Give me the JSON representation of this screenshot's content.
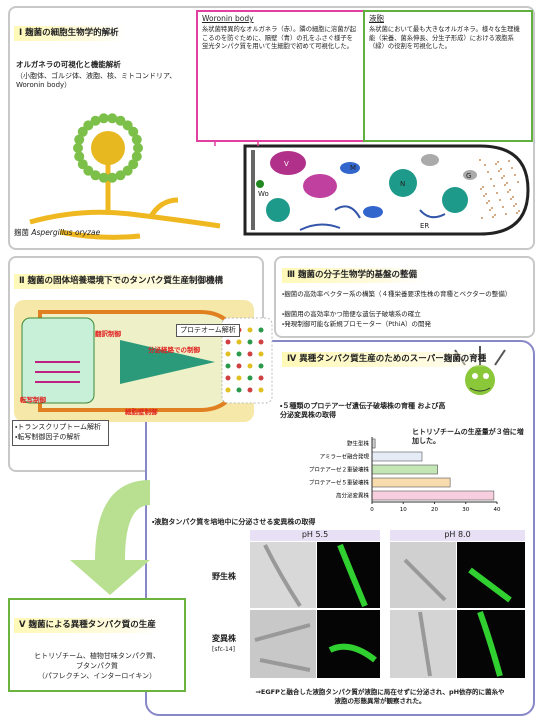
{
  "section1": {
    "title": "Ⅰ 麹菌の細胞生物学的解析",
    "subtitle": "オルガネラの可視化と機能解析",
    "organelles": "（小胞体、ゴルジ体、液胞、核、ミトコンドリア、Woronin body）",
    "species_label": "麹菌",
    "species_name": "Aspergillus oryzae",
    "woronin": {
      "title": "Woronin body",
      "text": "糸状菌特異的なオルガネラ（赤）。隣の細胞に溶菌が起こるのを防ぐために、隔壁（青）の孔をふさぐ様子を蛍光タンパク質を用いて生細胞で初めて可視化した。"
    },
    "vacuole": {
      "title": "液胞",
      "text": "糸状菌において最も大きなオルガネラ。様々な生理機能（栄養、菌糸伸長、分生子形成）における液胞系（緑）の役割を可視化した。"
    },
    "cell_labels": [
      "V",
      "Wo",
      "N",
      "M",
      "G",
      "ER"
    ]
  },
  "section2": {
    "title": "Ⅱ 麹菌の固体培養環境下でのタンパク質生産制御機構",
    "proteome": "プロテオーム解析",
    "transcriptome": "・トランスクリプトーム解析",
    "tf": "・転写制御因子の解析",
    "controls": [
      "翻訳制御",
      "分泌経路での制御",
      "転写制御",
      "細胞壁制御"
    ]
  },
  "section3": {
    "title": "Ⅲ 麹菌の分子生物学的基盤の整備",
    "items": [
      "・麹菌の高効率ベクター系の構築（４種栄養要求性株の育種とベクターの整備）",
      "・麹菌用の高効率かつ簡便な遺伝子破壊系の確立",
      "・発現制御可能な新規プロモーター（PthiA）の開発"
    ]
  },
  "section4": {
    "title": "Ⅳ 異種タンパク質生産のためのスーパー麹菌の育種",
    "item1": "・５種類のプロテアーゼ遺伝子破壊株の育種 および高分泌変異株の取得",
    "note": "ヒトリゾチームの生産量が３倍に増加した。",
    "item2": "・液胞タンパク質を培地中に分泌させる変異株の取得",
    "ph": [
      "pH 5.5",
      "pH 8.0"
    ],
    "wild": "野生株",
    "mutant": "変異株",
    "mutant_id": "[sfc-14]",
    "conclusion": "⇒EGFPと融合した液胞タンパク質が液胞に局在せずに分泌され、pH依存的に菌糸や液胞の形態異常が観察された。"
  },
  "section5": {
    "title": "Ⅴ 麹菌による異種タンパク質の生産",
    "text": [
      "ヒトリゾチーム、植物甘味タンパク質、",
      "ブタンパク質",
      "（パフレクチン、インターロイキン）"
    ]
  },
  "chart_data": {
    "type": "bar",
    "orientation": "horizontal",
    "categories": [
      "野生型株",
      "アミラーゼ融合発現",
      "プロテアーゼ２重破壊株",
      "プロテアーゼ５重破壊株",
      "高分泌変異株"
    ],
    "values": [
      1,
      16,
      21,
      25,
      39
    ],
    "colors": [
      "#cfcfcf",
      "#e6ecf6",
      "#c4e6b4",
      "#f8dcae",
      "#f6cede"
    ],
    "xlim": [
      0,
      40
    ],
    "xticks": [
      0,
      10,
      20,
      30,
      40
    ]
  }
}
